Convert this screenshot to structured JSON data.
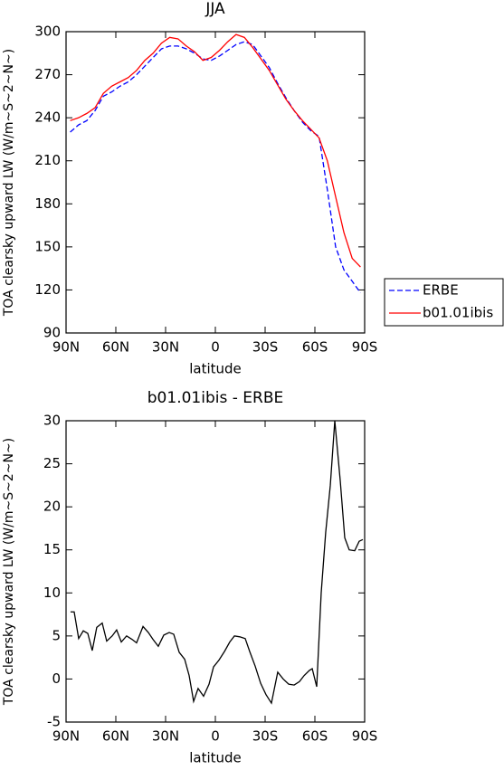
{
  "chart_data": [
    {
      "type": "line",
      "title": "JJA",
      "xlabel": "latitude",
      "ylabel": "TOA clearsky upward LW (W/m~S~2~N~)",
      "x": [
        87.5,
        82.5,
        77.5,
        72.5,
        67.5,
        62.5,
        57.5,
        52.5,
        47.5,
        42.5,
        37.5,
        32.5,
        27.5,
        22.5,
        17.5,
        12.5,
        7.5,
        2.5,
        -2.5,
        -7.5,
        -12.5,
        -17.5,
        -22.5,
        -27.5,
        -32.5,
        -37.5,
        -42.5,
        -47.5,
        -52.5,
        -57.5,
        -62.5,
        -67.5,
        -72.5,
        -77.5,
        -82.5,
        -87.5
      ],
      "series": [
        {
          "name": "ERBE",
          "color": "#0000ff",
          "dashed": true,
          "values": [
            230,
            235,
            238,
            245,
            255,
            258,
            262,
            265,
            270,
            276,
            282,
            288,
            290,
            290,
            288,
            285,
            281,
            280,
            283,
            287,
            291,
            293,
            291,
            283,
            275,
            264,
            254,
            245,
            237,
            231,
            227,
            190,
            150,
            134,
            126,
            118
          ]
        },
        {
          "name": "b01.01ibis",
          "color": "#ff0000",
          "dashed": false,
          "values": [
            238,
            240,
            243,
            247,
            257,
            262,
            265,
            268,
            273,
            280,
            285,
            292,
            296,
            295,
            290,
            286,
            280,
            282,
            287,
            293,
            298,
            296,
            289,
            281,
            273,
            263,
            253,
            245,
            238,
            232,
            226,
            210,
            185,
            160,
            142,
            136
          ]
        }
      ],
      "xlim": [
        90,
        -90
      ],
      "xticks": [
        {
          "value": 90,
          "label": "90N"
        },
        {
          "value": 60,
          "label": "60N"
        },
        {
          "value": 30,
          "label": "30N"
        },
        0,
        {
          "value": -30,
          "label": "30S"
        },
        {
          "value": -60,
          "label": "60S"
        },
        {
          "value": -90,
          "label": "90S"
        }
      ],
      "ylim": [
        90,
        300
      ],
      "yticks": [
        90,
        120,
        150,
        180,
        210,
        240,
        270,
        300
      ]
    },
    {
      "type": "line",
      "title": "b01.01ibis - ERBE",
      "xlabel": "latitude",
      "ylabel": "TOA clearsky upward LW (W/m~S~2~N~)",
      "x": [
        87.3,
        85.1,
        82.4,
        79.6,
        76.9,
        74.2,
        71.5,
        68.2,
        65.5,
        62.2,
        59.5,
        56.7,
        53.5,
        50.2,
        47.5,
        43.6,
        40.4,
        37.6,
        34.4,
        31.1,
        27.8,
        25.1,
        21.8,
        18.5,
        15.8,
        13.1,
        10.4,
        7.1,
        3.8,
        1.1,
        -2.2,
        -5.5,
        -8.7,
        -11.5,
        -14.7,
        -18,
        -20.7,
        -24,
        -27.3,
        -30.5,
        -33.8,
        -37.6,
        -40.9,
        -44.2,
        -47.5,
        -50.7,
        -53.5,
        -56.7,
        -58.4,
        -61.1,
        -63.8,
        -66.5,
        -69.3,
        -72,
        -75.3,
        -78,
        -80.7,
        -84,
        -86.7,
        -88.9
      ],
      "series": [
        {
          "color": "#000000",
          "dashed": false,
          "values": [
            7.8,
            7.8,
            4.7,
            5.6,
            5.3,
            3.3,
            6,
            6.5,
            4.4,
            5,
            5.7,
            4.3,
            5,
            4.6,
            4.2,
            6.1,
            5.4,
            4.6,
            3.8,
            5.1,
            5.4,
            5.2,
            3.1,
            2.3,
            0.4,
            -2.6,
            -1.1,
            -2,
            -0.6,
            1.4,
            2.2,
            3.2,
            4.3,
            5,
            4.9,
            4.7,
            3.2,
            1.5,
            -0.5,
            -1.8,
            -2.8,
            0.8,
            0,
            -0.6,
            -0.7,
            -0.3,
            0.4,
            1,
            1.2,
            -0.9,
            10,
            17,
            22.5,
            30,
            23,
            16.4,
            15,
            14.9,
            16,
            16.2
          ]
        }
      ],
      "xlim": [
        90,
        -90
      ],
      "xticks": [
        {
          "value": 90,
          "label": "90N"
        },
        {
          "value": 60,
          "label": "60N"
        },
        {
          "value": 30,
          "label": "30N"
        },
        0,
        {
          "value": -30,
          "label": "30S"
        },
        {
          "value": -60,
          "label": "60S"
        },
        {
          "value": -90,
          "label": "90S"
        }
      ],
      "ylim": [
        -5,
        30
      ],
      "yticks": [
        -5,
        0,
        5,
        10,
        15,
        20,
        25,
        30
      ]
    }
  ]
}
